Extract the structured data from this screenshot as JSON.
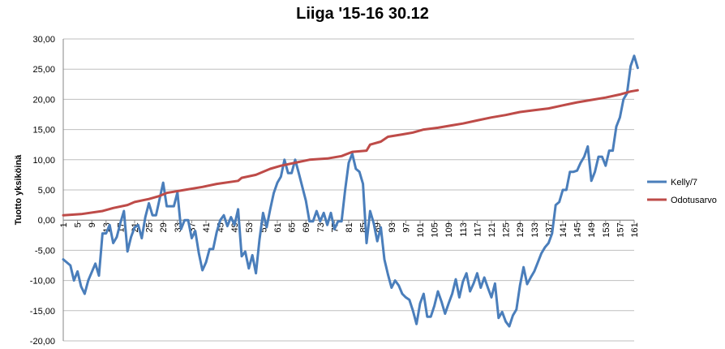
{
  "chart_data": {
    "type": "line",
    "title": "Liiga '15-16 30.12",
    "xlabel": "",
    "ylabel": "Tuotto yksiköinä",
    "ylim": [
      -20,
      30
    ],
    "ytick_step": 5,
    "xlim": [
      1,
      161
    ],
    "x_tick_labels": [
      "1",
      "5",
      "9",
      "13",
      "17",
      "21",
      "25",
      "29",
      "33",
      "37",
      "41",
      "45",
      "49",
      "53",
      "57",
      "61",
      "65",
      "69",
      "73",
      "77",
      "81",
      "85",
      "89",
      "93",
      "97",
      "101",
      "105",
      "109",
      "113",
      "117",
      "121",
      "125",
      "129",
      "133",
      "137",
      "141",
      "145",
      "149",
      "153",
      "157",
      "161"
    ],
    "grid": "horizontal",
    "legend": "right",
    "series": [
      {
        "name": "Kelly/7",
        "color": "#4a7ebb",
        "points": [
          [
            1,
            -6.5
          ],
          [
            3,
            -7.5
          ],
          [
            4,
            -10
          ],
          [
            5,
            -8.5
          ],
          [
            6,
            -11
          ],
          [
            7,
            -12.2
          ],
          [
            8,
            -10
          ],
          [
            10,
            -7.2
          ],
          [
            11,
            -9.2
          ],
          [
            12,
            -2.2
          ],
          [
            13,
            -2.2
          ],
          [
            14,
            -0.8
          ],
          [
            15,
            -3.8
          ],
          [
            16,
            -2.8
          ],
          [
            17,
            -0.5
          ],
          [
            18,
            1.5
          ],
          [
            19,
            -5.2
          ],
          [
            20,
            -2.8
          ],
          [
            21,
            -1.2
          ],
          [
            22,
            -0.8
          ],
          [
            23,
            -3
          ],
          [
            24,
            0.5
          ],
          [
            25,
            2.8
          ],
          [
            26,
            0.8
          ],
          [
            27,
            0.8
          ],
          [
            28,
            3.5
          ],
          [
            29,
            6.2
          ],
          [
            30,
            2.3
          ],
          [
            31,
            2.3
          ],
          [
            32,
            2.3
          ],
          [
            33,
            4.6
          ],
          [
            34,
            -1.5
          ],
          [
            35,
            0
          ],
          [
            36,
            0
          ],
          [
            37,
            -3
          ],
          [
            38,
            -1.8
          ],
          [
            39,
            -5.5
          ],
          [
            40,
            -8.3
          ],
          [
            41,
            -7
          ],
          [
            42,
            -4.8
          ],
          [
            43,
            -4.8
          ],
          [
            44,
            -2
          ],
          [
            45,
            0
          ],
          [
            46,
            0.8
          ],
          [
            47,
            -1
          ],
          [
            48,
            0.5
          ],
          [
            49,
            -0.8
          ],
          [
            50,
            1.8
          ],
          [
            51,
            -6
          ],
          [
            52,
            -5.2
          ],
          [
            53,
            -8
          ],
          [
            54,
            -5.8
          ],
          [
            55,
            -8.8
          ],
          [
            56,
            -3.2
          ],
          [
            57,
            1.2
          ],
          [
            58,
            -1.2
          ],
          [
            59,
            1.8
          ],
          [
            60,
            4.5
          ],
          [
            61,
            6.2
          ],
          [
            62,
            7.2
          ],
          [
            63,
            10
          ],
          [
            64,
            7.8
          ],
          [
            65,
            7.8
          ],
          [
            66,
            10
          ],
          [
            67,
            7.8
          ],
          [
            69,
            3.2
          ],
          [
            70,
            -0.2
          ],
          [
            71,
            -0.2
          ],
          [
            72,
            1.5
          ],
          [
            73,
            -0.2
          ],
          [
            74,
            1.2
          ],
          [
            75,
            -0.8
          ],
          [
            76,
            1.2
          ],
          [
            77,
            -1.5
          ],
          [
            78,
            -0.2
          ],
          [
            79,
            -0.2
          ],
          [
            80,
            5
          ],
          [
            81,
            9.5
          ],
          [
            82,
            11
          ],
          [
            83,
            8.5
          ],
          [
            84,
            8
          ],
          [
            85,
            6
          ],
          [
            86,
            -3.8
          ],
          [
            87,
            1.5
          ],
          [
            88,
            -0.5
          ],
          [
            89,
            -3.5
          ],
          [
            90,
            -1.2
          ],
          [
            91,
            -6.5
          ],
          [
            92,
            -9
          ],
          [
            93,
            -11.2
          ],
          [
            94,
            -10
          ],
          [
            95,
            -10.8
          ],
          [
            96,
            -12.2
          ],
          [
            97,
            -12.8
          ],
          [
            98,
            -13.2
          ],
          [
            99,
            -15
          ],
          [
            100,
            -17.2
          ],
          [
            101,
            -13.8
          ],
          [
            102,
            -12.2
          ],
          [
            103,
            -16
          ],
          [
            104,
            -16
          ],
          [
            105,
            -14.2
          ],
          [
            106,
            -11.8
          ],
          [
            107,
            -13.5
          ],
          [
            108,
            -15.5
          ],
          [
            109,
            -13.8
          ],
          [
            110,
            -12.2
          ],
          [
            111,
            -9.8
          ],
          [
            112,
            -12.8
          ],
          [
            113,
            -10.2
          ],
          [
            114,
            -8.8
          ],
          [
            115,
            -11.8
          ],
          [
            116,
            -10.5
          ],
          [
            117,
            -8.8
          ],
          [
            118,
            -11.2
          ],
          [
            119,
            -9.5
          ],
          [
            120,
            -11.2
          ],
          [
            121,
            -12.8
          ],
          [
            122,
            -10.5
          ],
          [
            123,
            -16.2
          ],
          [
            124,
            -15.2
          ],
          [
            125,
            -16.8
          ],
          [
            126,
            -17.6
          ],
          [
            127,
            -15.8
          ],
          [
            128,
            -14.8
          ],
          [
            129,
            -10.8
          ],
          [
            130,
            -7.8
          ],
          [
            131,
            -10.6
          ],
          [
            132,
            -9.5
          ],
          [
            133,
            -8.5
          ],
          [
            134,
            -7
          ],
          [
            135,
            -5.5
          ],
          [
            136,
            -4.5
          ],
          [
            137,
            -3.8
          ],
          [
            138,
            -2.2
          ],
          [
            139,
            2.5
          ],
          [
            140,
            3
          ],
          [
            141,
            5
          ],
          [
            142,
            5
          ],
          [
            143,
            8
          ],
          [
            144,
            8
          ],
          [
            145,
            8.2
          ],
          [
            146,
            9.5
          ],
          [
            147,
            10.5
          ],
          [
            148,
            12.2
          ],
          [
            149,
            6.5
          ],
          [
            150,
            8
          ],
          [
            151,
            10.5
          ],
          [
            152,
            10.5
          ],
          [
            153,
            9
          ],
          [
            154,
            11.5
          ],
          [
            155,
            11.5
          ],
          [
            156,
            15.5
          ],
          [
            157,
            17
          ],
          [
            158,
            20
          ],
          [
            159,
            21
          ],
          [
            160,
            25.5
          ],
          [
            161,
            27.2
          ],
          [
            162,
            25.2
          ]
        ]
      },
      {
        "name": "Odotusarvo",
        "color": "#be4b48",
        "points": [
          [
            1,
            0.8
          ],
          [
            6,
            1
          ],
          [
            12,
            1.5
          ],
          [
            15,
            2
          ],
          [
            19,
            2.5
          ],
          [
            21,
            3
          ],
          [
            25,
            3.5
          ],
          [
            28,
            4
          ],
          [
            30,
            4.5
          ],
          [
            35,
            5
          ],
          [
            40,
            5.5
          ],
          [
            44,
            6
          ],
          [
            50,
            6.5
          ],
          [
            51,
            7
          ],
          [
            55,
            7.5
          ],
          [
            59,
            8.5
          ],
          [
            62,
            9
          ],
          [
            66,
            9.5
          ],
          [
            70,
            10
          ],
          [
            75,
            10.2
          ],
          [
            79,
            10.6
          ],
          [
            82,
            11.3
          ],
          [
            86,
            11.5
          ],
          [
            87,
            12.5
          ],
          [
            90,
            13
          ],
          [
            92,
            13.8
          ],
          [
            96,
            14.2
          ],
          [
            99,
            14.5
          ],
          [
            102,
            15
          ],
          [
            106,
            15.3
          ],
          [
            110,
            15.7
          ],
          [
            113,
            16
          ],
          [
            117,
            16.5
          ],
          [
            121,
            17
          ],
          [
            125,
            17.4
          ],
          [
            129,
            17.9
          ],
          [
            133,
            18.2
          ],
          [
            137,
            18.5
          ],
          [
            141,
            19
          ],
          [
            145,
            19.5
          ],
          [
            149,
            19.9
          ],
          [
            153,
            20.3
          ],
          [
            157,
            20.8
          ],
          [
            160,
            21.3
          ],
          [
            162,
            21.5
          ]
        ]
      }
    ]
  }
}
